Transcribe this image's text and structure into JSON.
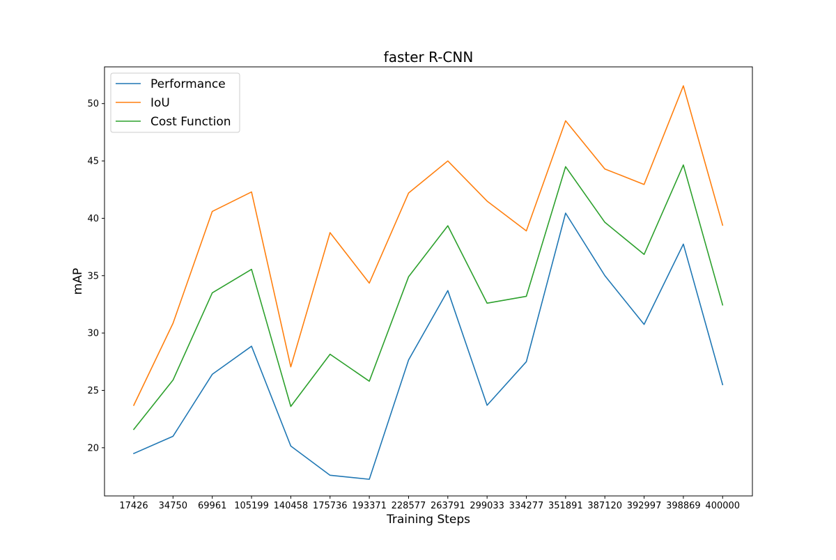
{
  "chart_data": {
    "type": "line",
    "title": "faster R-CNN",
    "xlabel": "Training Steps",
    "ylabel": "mAP",
    "categories": [
      "17426",
      "34750",
      "69961",
      "105199",
      "140458",
      "175736",
      "193371",
      "228577",
      "263791",
      "299033",
      "334277",
      "351891",
      "387120",
      "392997",
      "398869",
      "400000"
    ],
    "ylim": [
      15.8,
      53.2
    ],
    "yticks": [
      20,
      25,
      30,
      35,
      40,
      45,
      50
    ],
    "grid": false,
    "legend_position": "upper-left",
    "series": [
      {
        "name": "Performance",
        "color": "#1f77b4",
        "values": [
          19.5,
          21.0,
          26.4,
          28.85,
          20.15,
          17.6,
          17.25,
          27.65,
          33.7,
          23.7,
          27.5,
          40.45,
          35.0,
          30.75,
          37.75,
          25.5
        ]
      },
      {
        "name": "IoU",
        "color": "#ff7f0e",
        "values": [
          23.7,
          30.85,
          40.6,
          42.3,
          27.05,
          38.75,
          34.35,
          42.2,
          45.0,
          41.5,
          38.9,
          48.5,
          44.3,
          42.95,
          51.55,
          39.4
        ]
      },
      {
        "name": "Cost Function",
        "color": "#2ca02c",
        "values": [
          21.6,
          25.9,
          33.5,
          35.55,
          23.6,
          28.15,
          25.8,
          34.9,
          39.35,
          32.6,
          33.2,
          44.5,
          39.65,
          36.85,
          44.65,
          32.45
        ]
      }
    ]
  }
}
